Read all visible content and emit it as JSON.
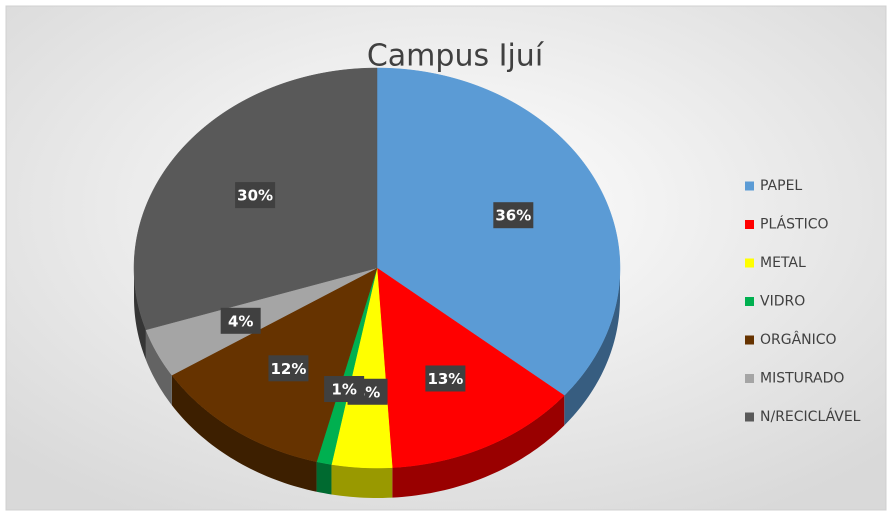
{
  "chart_data": {
    "type": "pie",
    "title": "Campus Ijuí",
    "categories": [
      "PAPEL",
      "PLÁSTICO",
      "METAL",
      "VIDRO",
      "ORGÂNICO",
      "MISTURADO",
      "N/RECICLÁVEL"
    ],
    "values": [
      36,
      13,
      4,
      1,
      12,
      4,
      30
    ],
    "value_labels": [
      "36%",
      "13%",
      "4%",
      "1%",
      "12%",
      "4%",
      "30%"
    ],
    "colors": [
      "#5b9bd5",
      "#ff0000",
      "#ffff00",
      "#00b050",
      "#663300",
      "#a5a5a5",
      "#595959"
    ],
    "legend": "right"
  }
}
